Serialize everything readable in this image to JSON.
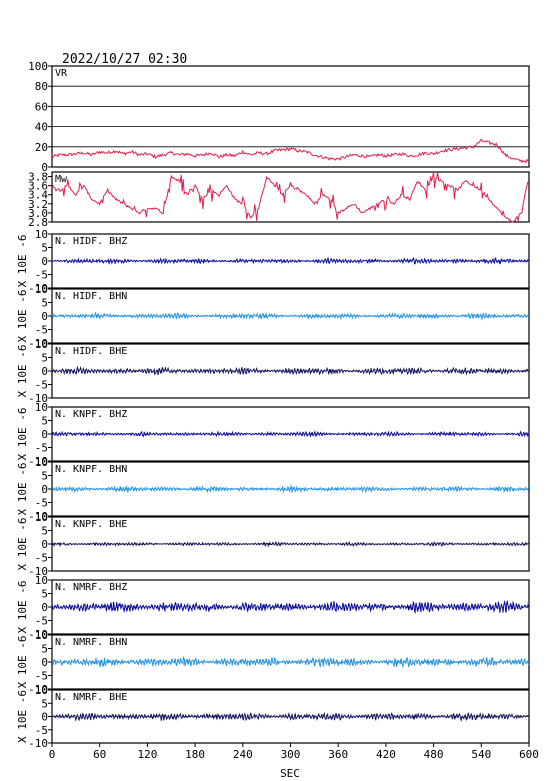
{
  "timestamp": "2022/10/27 02:30",
  "colors": {
    "vr_mw": "#e0204a",
    "dark_blue": "#0a0a9a",
    "light_blue": "#1e90e0",
    "navy": "#10105a",
    "grid": "#000000"
  },
  "chart_data": {
    "type": "line",
    "title": "2022/10/27 02:30",
    "xlabel": "SEC",
    "xlim": [
      0,
      600
    ],
    "xticks": [
      "0",
      "60",
      "120",
      "180",
      "240",
      "300",
      "360",
      "420",
      "480",
      "540",
      "600"
    ],
    "unit_label": "X 10E -6",
    "panels": [
      {
        "label": "VR",
        "ylim": [
          0,
          100
        ],
        "yticks": [
          "0",
          "20",
          "40",
          "60",
          "80",
          "100"
        ],
        "color": "#e0204a",
        "kind": "vr"
      },
      {
        "label": "Mw",
        "ylim": [
          2.8,
          3.9
        ],
        "yticks": [
          "2.8",
          "3.0",
          "3.2",
          "3.4",
          "3.6",
          "3.8"
        ],
        "color": "#e0204a",
        "kind": "mw"
      },
      {
        "label": "N. HIDF. BHZ",
        "ylim": [
          -10,
          10
        ],
        "yticks": [
          "-10",
          "-5",
          "0",
          "5",
          "10"
        ],
        "color": "#0a0a9a",
        "amp": 0.6
      },
      {
        "label": "N. HIDF. BHN",
        "ylim": [
          -10,
          10
        ],
        "yticks": [
          "-10",
          "-5",
          "0",
          "5",
          "10"
        ],
        "color": "#1e90e0",
        "amp": 0.6
      },
      {
        "label": "N. HIDF. BHE",
        "ylim": [
          -10,
          10
        ],
        "yticks": [
          "-10",
          "-5",
          "0",
          "5",
          "10"
        ],
        "color": "#10105a",
        "amp": 0.8
      },
      {
        "label": "N. KNPF. BHZ",
        "ylim": [
          -10,
          10
        ],
        "yticks": [
          "-10",
          "-5",
          "0",
          "5",
          "10"
        ],
        "color": "#0a0a9a",
        "amp": 0.5
      },
      {
        "label": "N. KNPF. BHN",
        "ylim": [
          -10,
          10
        ],
        "yticks": [
          "-10",
          "-5",
          "0",
          "5",
          "10"
        ],
        "color": "#1e90e0",
        "amp": 0.6
      },
      {
        "label": "N. KNPF. BHE",
        "ylim": [
          -10,
          10
        ],
        "yticks": [
          "-10",
          "-5",
          "0",
          "5",
          "10"
        ],
        "color": "#10105a",
        "amp": 0.4
      },
      {
        "label": "N. NMRF. BHZ",
        "ylim": [
          -10,
          10
        ],
        "yticks": [
          "-10",
          "-5",
          "0",
          "5",
          "10"
        ],
        "color": "#0a0a9a",
        "amp": 1.3
      },
      {
        "label": "N. NMRF. BHN",
        "ylim": [
          -10,
          10
        ],
        "yticks": [
          "-10",
          "-5",
          "0",
          "5",
          "10"
        ],
        "color": "#1e90e0",
        "amp": 1.1
      },
      {
        "label": "N. NMRF. BHE",
        "ylim": [
          -10,
          10
        ],
        "yticks": [
          "-10",
          "-5",
          "0",
          "5",
          "10"
        ],
        "color": "#10105a",
        "amp": 0.9
      }
    ],
    "vr_series": {
      "x": [
        0,
        10,
        20,
        30,
        40,
        50,
        60,
        70,
        80,
        90,
        100,
        110,
        120,
        130,
        140,
        150,
        160,
        170,
        180,
        190,
        200,
        210,
        220,
        230,
        240,
        250,
        260,
        270,
        280,
        290,
        300,
        310,
        320,
        330,
        340,
        350,
        360,
        370,
        380,
        390,
        400,
        410,
        420,
        430,
        440,
        450,
        460,
        470,
        480,
        490,
        500,
        510,
        520,
        530,
        540,
        550,
        560,
        570,
        580,
        590,
        600
      ],
      "y": [
        10,
        12,
        12,
        13,
        14,
        12,
        15,
        14,
        16,
        13,
        15,
        12,
        13,
        10,
        12,
        14,
        12,
        13,
        11,
        12,
        14,
        10,
        12,
        11,
        15,
        12,
        14,
        13,
        16,
        17,
        18,
        16,
        15,
        12,
        10,
        8,
        8,
        10,
        12,
        11,
        10,
        12,
        11,
        12,
        13,
        11,
        12,
        14,
        13,
        16,
        17,
        18,
        19,
        20,
        26,
        24,
        22,
        12,
        8,
        6,
        6
      ]
    },
    "mw_series": {
      "x": [
        0,
        10,
        20,
        30,
        40,
        50,
        60,
        70,
        80,
        90,
        100,
        110,
        120,
        130,
        140,
        150,
        160,
        170,
        180,
        190,
        200,
        210,
        220,
        230,
        240,
        250,
        260,
        270,
        280,
        290,
        300,
        310,
        320,
        330,
        340,
        350,
        360,
        370,
        380,
        390,
        400,
        410,
        420,
        430,
        440,
        450,
        460,
        470,
        480,
        490,
        500,
        510,
        520,
        530,
        540,
        550,
        560,
        570,
        580,
        590,
        600
      ],
      "y": [
        3.6,
        3.5,
        3.6,
        3.4,
        3.6,
        3.3,
        3.2,
        3.5,
        3.3,
        3.2,
        3.1,
        3.0,
        3.1,
        3.1,
        3.0,
        3.8,
        3.7,
        3.4,
        3.6,
        3.3,
        3.5,
        3.4,
        3.6,
        3.3,
        3.2,
        2.9,
        3.1,
        3.8,
        3.6,
        3.4,
        3.6,
        3.5,
        3.4,
        3.2,
        3.4,
        3.3,
        3.0,
        3.1,
        3.2,
        3.0,
        3.1,
        3.2,
        3.3,
        3.2,
        3.4,
        3.3,
        3.7,
        3.5,
        3.8,
        3.7,
        3.6,
        3.5,
        3.7,
        3.6,
        3.5,
        3.3,
        3.1,
        2.9,
        2.8,
        3.0,
        3.8
      ]
    }
  }
}
